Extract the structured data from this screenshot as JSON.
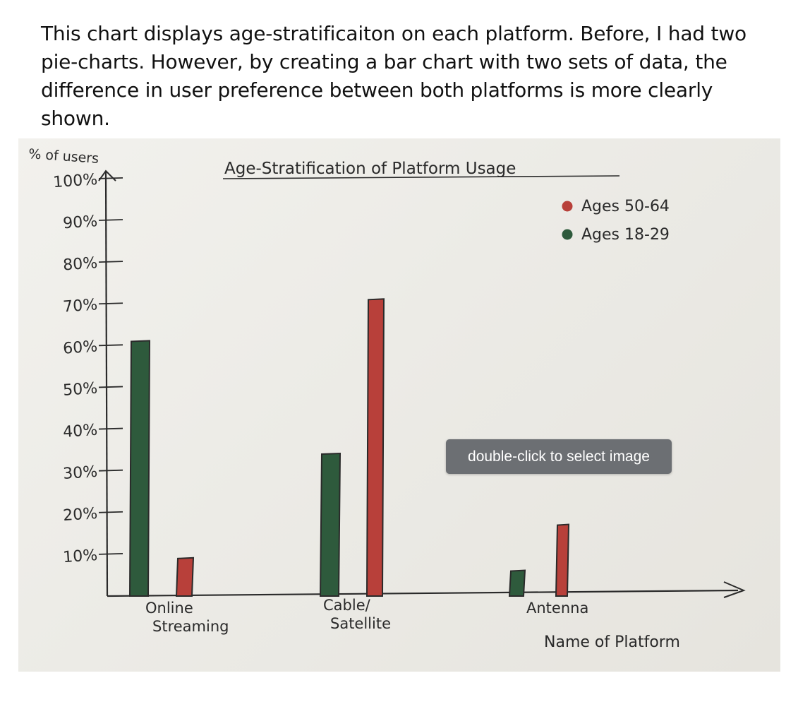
{
  "caption": "This chart displays age-stratificaiton on each platform. Before, I had two pie-charts. However, by creating a bar chart with two sets of data, the difference in user preference between both platforms is more clearly shown.",
  "tooltip": "double-click to select image",
  "chart_data": {
    "type": "bar",
    "title": "Age-Stratification of Platform Usage",
    "xlabel": "Name of Platform",
    "ylabel": "% of users",
    "ylim": [
      0,
      100
    ],
    "yticks": [
      "10%",
      "20%",
      "30%",
      "40%",
      "50%",
      "60%",
      "70%",
      "80%",
      "90%",
      "100%"
    ],
    "categories": [
      "Online Streaming",
      "Cable/ Satellite",
      "Antenna"
    ],
    "series": [
      {
        "name": "Ages 18-29",
        "color": "#2e5a3c",
        "values": [
          61,
          34,
          6
        ]
      },
      {
        "name": "Ages 50-64",
        "color": "#b8403a",
        "values": [
          9,
          71,
          17
        ]
      }
    ],
    "legend": "top-right",
    "grid": false
  }
}
